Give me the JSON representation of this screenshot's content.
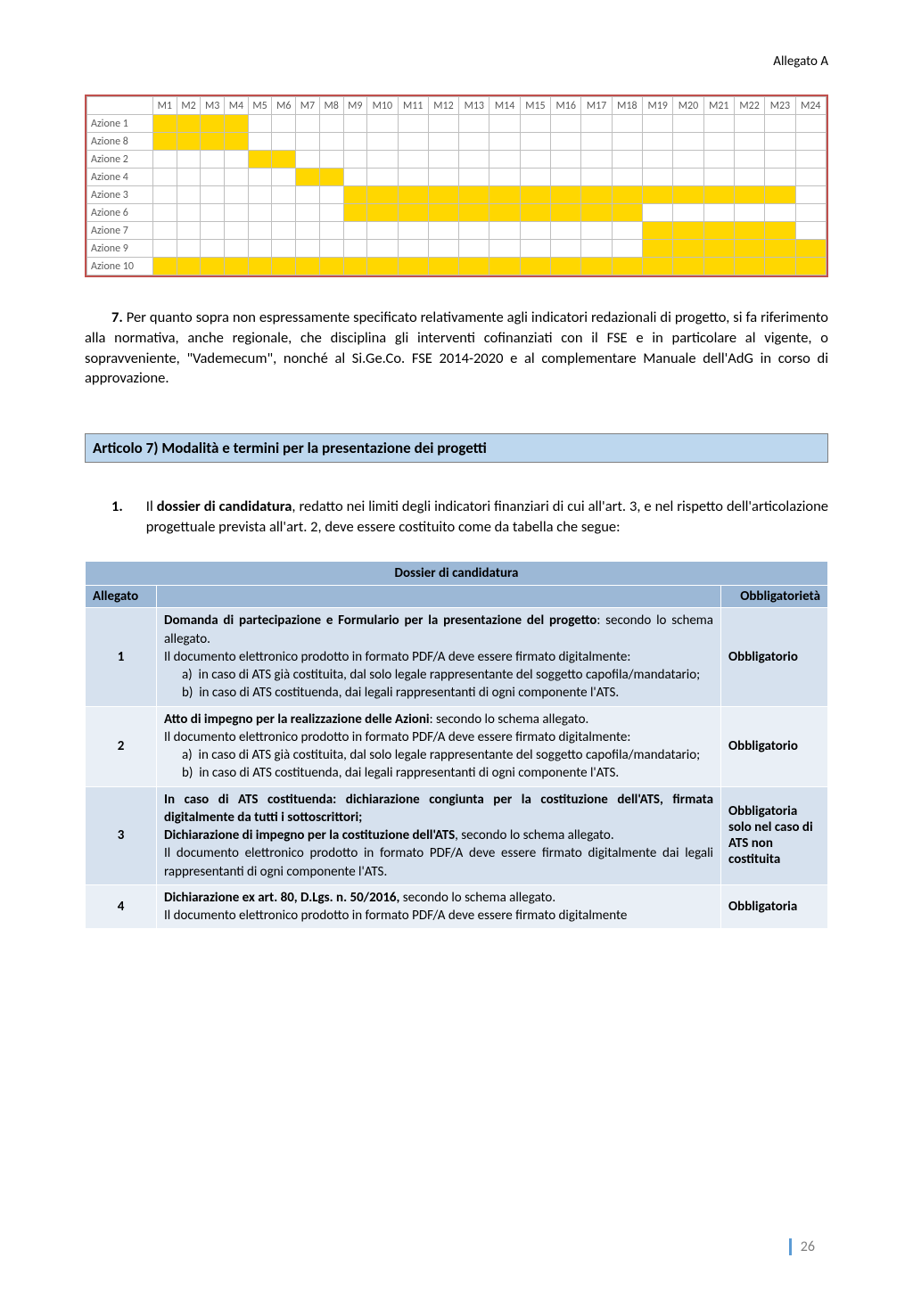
{
  "header": {
    "allegato": "Allegato A"
  },
  "gantt": {
    "months": [
      "M1",
      "M2",
      "M3",
      "M4",
      "M5",
      "M6",
      "M7",
      "M8",
      "M9",
      "M10",
      "M11",
      "M12",
      "M13",
      "M14",
      "M15",
      "M16",
      "M17",
      "M18",
      "M19",
      "M20",
      "M21",
      "M22",
      "M23",
      "M24"
    ],
    "cell_colors": {
      "on": "#ffd700",
      "off": "#ffffff",
      "border": "#bfbfbf",
      "frame": "#c0504d"
    },
    "rows": [
      {
        "label": "Azione 1",
        "cells": [
          1,
          1,
          1,
          1,
          0,
          0,
          0,
          0,
          0,
          0,
          0,
          0,
          0,
          0,
          0,
          0,
          0,
          0,
          0,
          0,
          0,
          0,
          0,
          0
        ]
      },
      {
        "label": "Azione 8",
        "cells": [
          1,
          1,
          1,
          1,
          0,
          0,
          0,
          0,
          0,
          0,
          0,
          0,
          0,
          0,
          0,
          0,
          0,
          0,
          0,
          0,
          0,
          0,
          0,
          0
        ]
      },
      {
        "label": "Azione 2",
        "cells": [
          0,
          0,
          0,
          0,
          1,
          1,
          0,
          0,
          0,
          0,
          0,
          0,
          0,
          0,
          0,
          0,
          0,
          0,
          0,
          0,
          0,
          0,
          0,
          0
        ]
      },
      {
        "label": "Azione 4",
        "cells": [
          0,
          0,
          0,
          0,
          0,
          0,
          1,
          1,
          0,
          0,
          0,
          0,
          0,
          0,
          0,
          0,
          0,
          0,
          0,
          0,
          0,
          0,
          0,
          0
        ]
      },
      {
        "label": "Azione 3",
        "cells": [
          0,
          0,
          0,
          0,
          0,
          0,
          0,
          0,
          1,
          1,
          1,
          1,
          1,
          1,
          1,
          1,
          1,
          1,
          1,
          1,
          1,
          1,
          1,
          0
        ]
      },
      {
        "label": "Azione 6",
        "cells": [
          0,
          0,
          0,
          0,
          0,
          0,
          0,
          0,
          1,
          1,
          1,
          1,
          1,
          1,
          1,
          1,
          1,
          1,
          0,
          0,
          0,
          0,
          0,
          0
        ]
      },
      {
        "label": "Azione 7",
        "cells": [
          0,
          0,
          0,
          0,
          0,
          0,
          0,
          0,
          0,
          0,
          0,
          0,
          0,
          0,
          0,
          0,
          0,
          0,
          1,
          1,
          1,
          1,
          1,
          0
        ]
      },
      {
        "label": "Azione 9",
        "cells": [
          0,
          0,
          0,
          0,
          0,
          0,
          0,
          0,
          0,
          0,
          0,
          0,
          0,
          0,
          0,
          0,
          0,
          0,
          1,
          1,
          1,
          1,
          1,
          1
        ]
      },
      {
        "label": "Azione 10",
        "cells": [
          1,
          1,
          1,
          1,
          1,
          1,
          1,
          1,
          1,
          1,
          1,
          1,
          1,
          1,
          1,
          1,
          1,
          1,
          1,
          1,
          1,
          1,
          1,
          1
        ]
      }
    ]
  },
  "para7": {
    "lead": "7.",
    "text": " Per quanto sopra non espressamente specificato relativamente agli indicatori redazionali di progetto, si fa riferimento alla normativa, anche regionale, che disciplina gli interventi cofinanziati con il FSE e in particolare al vigente, o sopravveniente, \"Vademecum\", nonché al Si.Ge.Co. FSE 2014-2020 e al complementare Manuale dell'AdG in corso di approvazione."
  },
  "article_box": "Articolo 7) Modalità e termini per la presentazione dei progetti",
  "numlist": {
    "num": "1.",
    "text_before_bold": "Il ",
    "bold": "dossier di candidatura",
    "text_after_bold": ", redatto nei limiti degli indicatori finanziari di cui all'art. 3, e nel rispetto dell'articolazione progettuale prevista all'art. 2, deve essere costituito come da tabella che segue:"
  },
  "dossier": {
    "title": "Dossier di candidatura",
    "headers": {
      "c1": "Allegato",
      "c3": "Obbligatorietà"
    },
    "colors": {
      "header_bg": "#9cb8d6",
      "row_bg": "#d6e1ee",
      "row_alt_bg": "#e9eff6",
      "border": "#ffffff"
    },
    "rows": [
      {
        "n": "1",
        "obbl": "Obbligatorio",
        "html": "<b>Domanda di partecipazione e Formulario per la presentazione del progetto</b>: secondo lo schema allegato.<br>Il documento elettronico prodotto in formato PDF/A deve essere firmato digitalmente:<br><span class='sub'>a)&nbsp;&nbsp;in caso di ATS già costituita, dal solo legale rappresentante del soggetto capofila/mandatario;</span><span class='sub'>b)&nbsp;&nbsp;in caso di ATS costituenda, dai legali rappresentanti di ogni componente l'ATS.</span>"
      },
      {
        "n": "2",
        "obbl": "Obbligatorio",
        "html": "<b>Atto di impegno per la realizzazione delle Azioni</b>: secondo lo schema allegato.<br>Il documento elettronico prodotto in formato PDF/A deve essere firmato digitalmente:<br><span class='sub'>a)&nbsp;&nbsp;in caso di ATS già costituita, dal solo legale rappresentante del soggetto capofila/mandatario;</span><span class='sub'>b)&nbsp;&nbsp;in caso di ATS costituenda, dai legali rappresentanti di ogni componente l'ATS.</span>"
      },
      {
        "n": "3",
        "obbl": "Obbligatoria solo nel caso di ATS non costituita",
        "html": "<b>In caso di ATS costituenda: dichiarazione congiunta per la costituzione dell'ATS, firmata digitalmente da tutti i sottoscrittori;</b><br><b>Dichiarazione di impegno per la costituzione dell'ATS</b>, secondo lo schema allegato.<br>Il documento elettronico prodotto in formato PDF/A deve essere firmato digitalmente dai legali rappresentanti di ogni componente l'ATS."
      },
      {
        "n": "4",
        "obbl": "Obbligatoria",
        "html": "<b>Dichiarazione ex art. 80, D.Lgs. n. 50/2016,</b> secondo lo schema allegato.<br>Il documento elettronico prodotto in formato PDF/A deve essere firmato digitalmente"
      }
    ]
  },
  "footer": {
    "page": "26"
  }
}
